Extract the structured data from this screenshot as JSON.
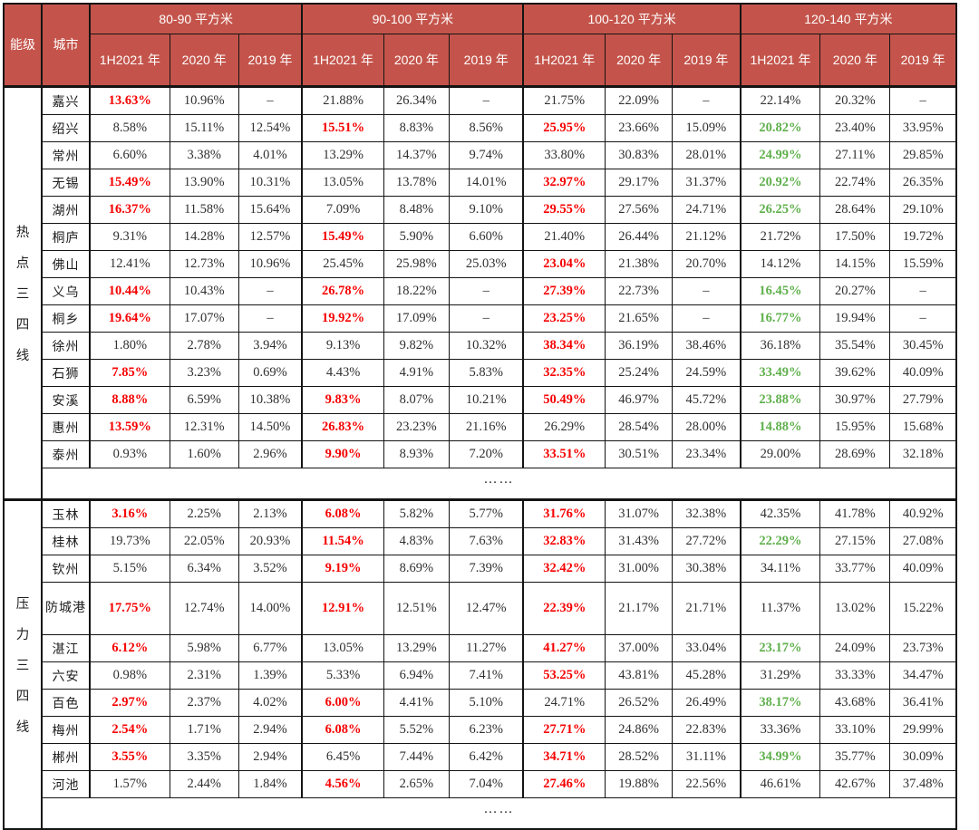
{
  "colors": {
    "header_bg": "#c4544b",
    "header_text": "#ffffff",
    "highlight_red": "#f60000",
    "highlight_green": "#5fb04c",
    "body_text": "#2f2f2f",
    "border": "#141414"
  },
  "chart_data": {
    "type": "table",
    "corner_header": "能级",
    "city_header": "城市",
    "column_groups": [
      "80-90 平方米",
      "90-100 平方米",
      "100-120 平方米",
      "120-140 平方米"
    ],
    "sub_columns": [
      "1H2021 年",
      "2020 年",
      "2019 年"
    ],
    "ellipsis": "……",
    "cell_flag_legend": "value string format: 'text' or 'text|red' or 'text|green'",
    "groups": [
      {
        "tier": "热点三四线",
        "rows": [
          {
            "city": "嘉兴",
            "values": [
              "13.63%|red",
              "10.96%",
              "–",
              "21.88%",
              "26.34%",
              "–",
              "21.75%",
              "22.09%",
              "–",
              "22.14%",
              "20.32%",
              "–"
            ]
          },
          {
            "city": "绍兴",
            "values": [
              "8.58%",
              "15.11%",
              "12.54%",
              "15.51%|red",
              "8.83%",
              "8.56%",
              "25.95%|red",
              "23.66%",
              "15.09%",
              "20.82%|green",
              "23.40%",
              "33.95%"
            ]
          },
          {
            "city": "常州",
            "values": [
              "6.60%",
              "3.38%",
              "4.01%",
              "13.29%",
              "14.37%",
              "9.74%",
              "33.80%",
              "30.83%",
              "28.01%",
              "24.99%|green",
              "27.11%",
              "29.85%"
            ]
          },
          {
            "city": "无锡",
            "values": [
              "15.49%|red",
              "13.90%",
              "10.31%",
              "13.05%",
              "13.78%",
              "14.01%",
              "32.97%|red",
              "29.17%",
              "31.37%",
              "20.92%|green",
              "22.74%",
              "26.35%"
            ]
          },
          {
            "city": "湖州",
            "values": [
              "16.37%|red",
              "11.58%",
              "15.64%",
              "7.09%",
              "8.48%",
              "9.10%",
              "29.55%|red",
              "27.56%",
              "24.71%",
              "26.25%|green",
              "28.64%",
              "29.10%"
            ]
          },
          {
            "city": "桐庐",
            "values": [
              "9.31%",
              "14.28%",
              "12.57%",
              "15.49%|red",
              "5.90%",
              "6.60%",
              "21.40%",
              "26.44%",
              "21.12%",
              "21.72%",
              "17.50%",
              "19.72%"
            ]
          },
          {
            "city": "佛山",
            "values": [
              "12.41%",
              "12.73%",
              "10.96%",
              "25.45%",
              "25.98%",
              "25.03%",
              "23.04%|red",
              "21.38%",
              "20.70%",
              "14.12%",
              "14.15%",
              "15.59%"
            ]
          },
          {
            "city": "义乌",
            "values": [
              "10.44%|red",
              "10.43%",
              "–",
              "26.78%|red",
              "18.22%",
              "–",
              "27.39%|red",
              "22.73%",
              "–",
              "16.45%|green",
              "20.27%",
              "–"
            ]
          },
          {
            "city": "桐乡",
            "values": [
              "19.64%|red",
              "17.07%",
              "–",
              "19.92%|red",
              "17.09%",
              "–",
              "23.25%|red",
              "21.65%",
              "–",
              "16.77%|green",
              "19.94%",
              "–"
            ]
          },
          {
            "city": "徐州",
            "values": [
              "1.80%",
              "2.78%",
              "3.94%",
              "9.13%",
              "9.82%",
              "10.32%",
              "38.34%|red",
              "36.19%",
              "38.46%",
              "36.18%",
              "35.54%",
              "30.45%"
            ]
          },
          {
            "city": "石狮",
            "values": [
              "7.85%|red",
              "3.23%",
              "0.69%",
              "4.43%",
              "4.91%",
              "5.83%",
              "32.35%|red",
              "25.24%",
              "24.59%",
              "33.49%|green",
              "39.62%",
              "40.09%"
            ]
          },
          {
            "city": "安溪",
            "values": [
              "8.88%|red",
              "6.59%",
              "10.38%",
              "9.83%|red",
              "8.07%",
              "10.21%",
              "50.49%|red",
              "46.97%",
              "45.72%",
              "23.88%|green",
              "30.97%",
              "27.79%"
            ]
          },
          {
            "city": "惠州",
            "values": [
              "13.59%|red",
              "12.31%",
              "14.50%",
              "26.83%|red",
              "23.23%",
              "21.16%",
              "26.29%",
              "28.54%",
              "28.00%",
              "14.88%|green",
              "15.95%",
              "15.68%"
            ]
          },
          {
            "city": "泰州",
            "values": [
              "0.93%",
              "1.60%",
              "2.96%",
              "9.90%|red",
              "8.93%",
              "7.20%",
              "33.51%|red",
              "30.51%",
              "23.34%",
              "29.00%",
              "28.69%",
              "32.18%"
            ]
          }
        ]
      },
      {
        "tier": "压力三四线",
        "rows": [
          {
            "city": "玉林",
            "values": [
              "3.16%|red",
              "2.25%",
              "2.13%",
              "6.08%|red",
              "5.82%",
              "5.77%",
              "31.76%|red",
              "31.07%",
              "32.38%",
              "42.35%",
              "41.78%",
              "40.92%"
            ]
          },
          {
            "city": "桂林",
            "values": [
              "19.73%",
              "22.05%",
              "20.93%",
              "11.54%|red",
              "4.83%",
              "7.63%",
              "32.83%|red",
              "31.43%",
              "27.72%",
              "22.29%|green",
              "27.15%",
              "27.08%"
            ]
          },
          {
            "city": "钦州",
            "values": [
              "5.15%",
              "6.34%",
              "3.52%",
              "9.19%|red",
              "8.69%",
              "7.39%",
              "32.42%|red",
              "31.00%",
              "30.38%",
              "34.11%",
              "33.77%",
              "40.09%"
            ]
          },
          {
            "city": "防城港",
            "values": [
              "17.75%|red",
              "12.74%",
              "14.00%",
              "12.91%|red",
              "12.51%",
              "12.47%",
              "22.39%|red",
              "21.17%",
              "21.71%",
              "11.37%",
              "13.02%",
              "15.22%"
            ],
            "tall": true
          },
          {
            "city": "湛江",
            "values": [
              "6.12%|red",
              "5.98%",
              "6.77%",
              "13.05%",
              "13.29%",
              "11.27%",
              "41.27%|red",
              "37.00%",
              "33.04%",
              "23.17%|green",
              "24.09%",
              "23.73%"
            ]
          },
          {
            "city": "六安",
            "values": [
              "0.98%",
              "2.31%",
              "1.39%",
              "5.33%",
              "6.94%",
              "7.41%",
              "53.25%|red",
              "43.81%",
              "45.28%",
              "31.29%",
              "33.33%",
              "34.47%"
            ]
          },
          {
            "city": "百色",
            "values": [
              "2.97%|red",
              "2.37%",
              "4.02%",
              "6.00%|red",
              "4.41%",
              "5.10%",
              "24.71%",
              "26.52%",
              "26.49%",
              "38.17%|green",
              "43.68%",
              "36.41%"
            ]
          },
          {
            "city": "梅州",
            "values": [
              "2.54%|red",
              "1.71%",
              "2.94%",
              "6.08%|red",
              "5.52%",
              "6.23%",
              "27.71%|red",
              "24.86%",
              "22.83%",
              "33.36%",
              "33.10%",
              "29.99%"
            ]
          },
          {
            "city": "郴州",
            "values": [
              "3.55%|red",
              "3.35%",
              "2.94%",
              "6.45%",
              "7.44%",
              "6.42%",
              "34.71%|red",
              "28.52%",
              "31.11%",
              "34.99%|green",
              "35.77%",
              "30.09%"
            ]
          },
          {
            "city": "河池",
            "values": [
              "1.57%",
              "2.44%",
              "1.84%",
              "4.56%|red",
              "2.65%",
              "7.04%",
              "27.46%|red",
              "19.88%",
              "22.56%",
              "46.61%",
              "42.67%",
              "37.48%"
            ]
          }
        ]
      }
    ]
  }
}
